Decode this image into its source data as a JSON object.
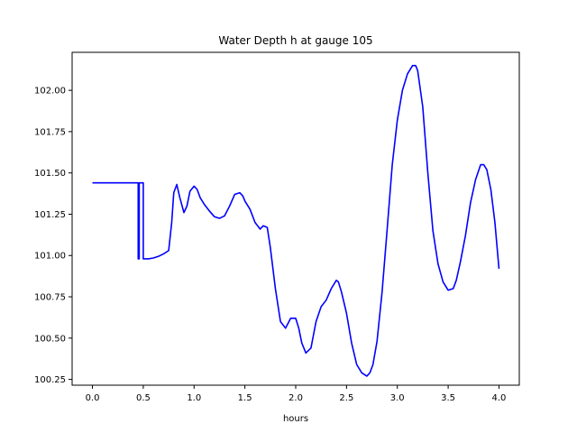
{
  "chart_data": {
    "type": "line",
    "title": "Water Depth h at gauge 105",
    "xlabel": "hours",
    "ylabel": "",
    "xlim": [
      -0.2,
      4.2
    ],
    "ylim": [
      100.215,
      102.23
    ],
    "x_ticks": [
      0.0,
      0.5,
      1.0,
      1.5,
      2.0,
      2.5,
      3.0,
      3.5,
      4.0
    ],
    "x_tick_labels": [
      "0.0",
      "0.5",
      "1.0",
      "1.5",
      "2.0",
      "2.5",
      "3.0",
      "3.5",
      "4.0"
    ],
    "y_ticks": [
      100.25,
      100.5,
      100.75,
      101.0,
      101.25,
      101.5,
      101.75,
      102.0
    ],
    "y_tick_labels": [
      "100.25",
      "100.50",
      "100.75",
      "101.00",
      "101.25",
      "101.50",
      "101.75",
      "102.00"
    ],
    "grid": false,
    "legend": "none",
    "series": [
      {
        "color": "#0000ff",
        "x": [
          0.0,
          0.1,
          0.2,
          0.3,
          0.44,
          0.44,
          0.45,
          0.45,
          0.46,
          0.46,
          0.49,
          0.5,
          0.5,
          0.55,
          0.6,
          0.65,
          0.7,
          0.75,
          0.78,
          0.8,
          0.83,
          0.86,
          0.9,
          0.93,
          0.96,
          1.0,
          1.03,
          1.06,
          1.1,
          1.15,
          1.2,
          1.25,
          1.3,
          1.35,
          1.4,
          1.45,
          1.48,
          1.5,
          1.55,
          1.6,
          1.65,
          1.68,
          1.72,
          1.75,
          1.8,
          1.85,
          1.9,
          1.95,
          2.0,
          2.03,
          2.06,
          2.1,
          2.15,
          2.2,
          2.25,
          2.3,
          2.35,
          2.4,
          2.42,
          2.45,
          2.5,
          2.55,
          2.6,
          2.65,
          2.7,
          2.73,
          2.76,
          2.8,
          2.85,
          2.9,
          2.95,
          3.0,
          3.05,
          3.1,
          3.15,
          3.18,
          3.2,
          3.25,
          3.3,
          3.35,
          3.4,
          3.45,
          3.5,
          3.55,
          3.58,
          3.62,
          3.67,
          3.72,
          3.77,
          3.82,
          3.85,
          3.88,
          3.92,
          3.96,
          4.0
        ],
        "y": [
          101.44,
          101.44,
          101.44,
          101.44,
          101.44,
          101.44,
          101.44,
          100.98,
          100.98,
          101.44,
          101.44,
          101.44,
          100.98,
          100.98,
          100.985,
          100.995,
          101.01,
          101.03,
          101.2,
          101.38,
          101.43,
          101.35,
          101.26,
          101.3,
          101.39,
          101.42,
          101.4,
          101.35,
          101.31,
          101.27,
          101.235,
          101.225,
          101.24,
          101.3,
          101.37,
          101.38,
          101.36,
          101.33,
          101.28,
          101.2,
          101.16,
          101.18,
          101.17,
          101.05,
          100.8,
          100.6,
          100.56,
          100.62,
          100.62,
          100.56,
          100.47,
          100.41,
          100.44,
          100.6,
          100.69,
          100.73,
          100.8,
          100.85,
          100.84,
          100.78,
          100.65,
          100.47,
          100.34,
          100.29,
          100.27,
          100.29,
          100.34,
          100.48,
          100.78,
          101.16,
          101.55,
          101.82,
          102.0,
          102.1,
          102.15,
          102.15,
          102.12,
          101.9,
          101.5,
          101.15,
          100.95,
          100.84,
          100.79,
          100.8,
          100.85,
          100.96,
          101.12,
          101.32,
          101.46,
          101.55,
          101.55,
          101.52,
          101.4,
          101.2,
          100.92
        ]
      }
    ]
  }
}
